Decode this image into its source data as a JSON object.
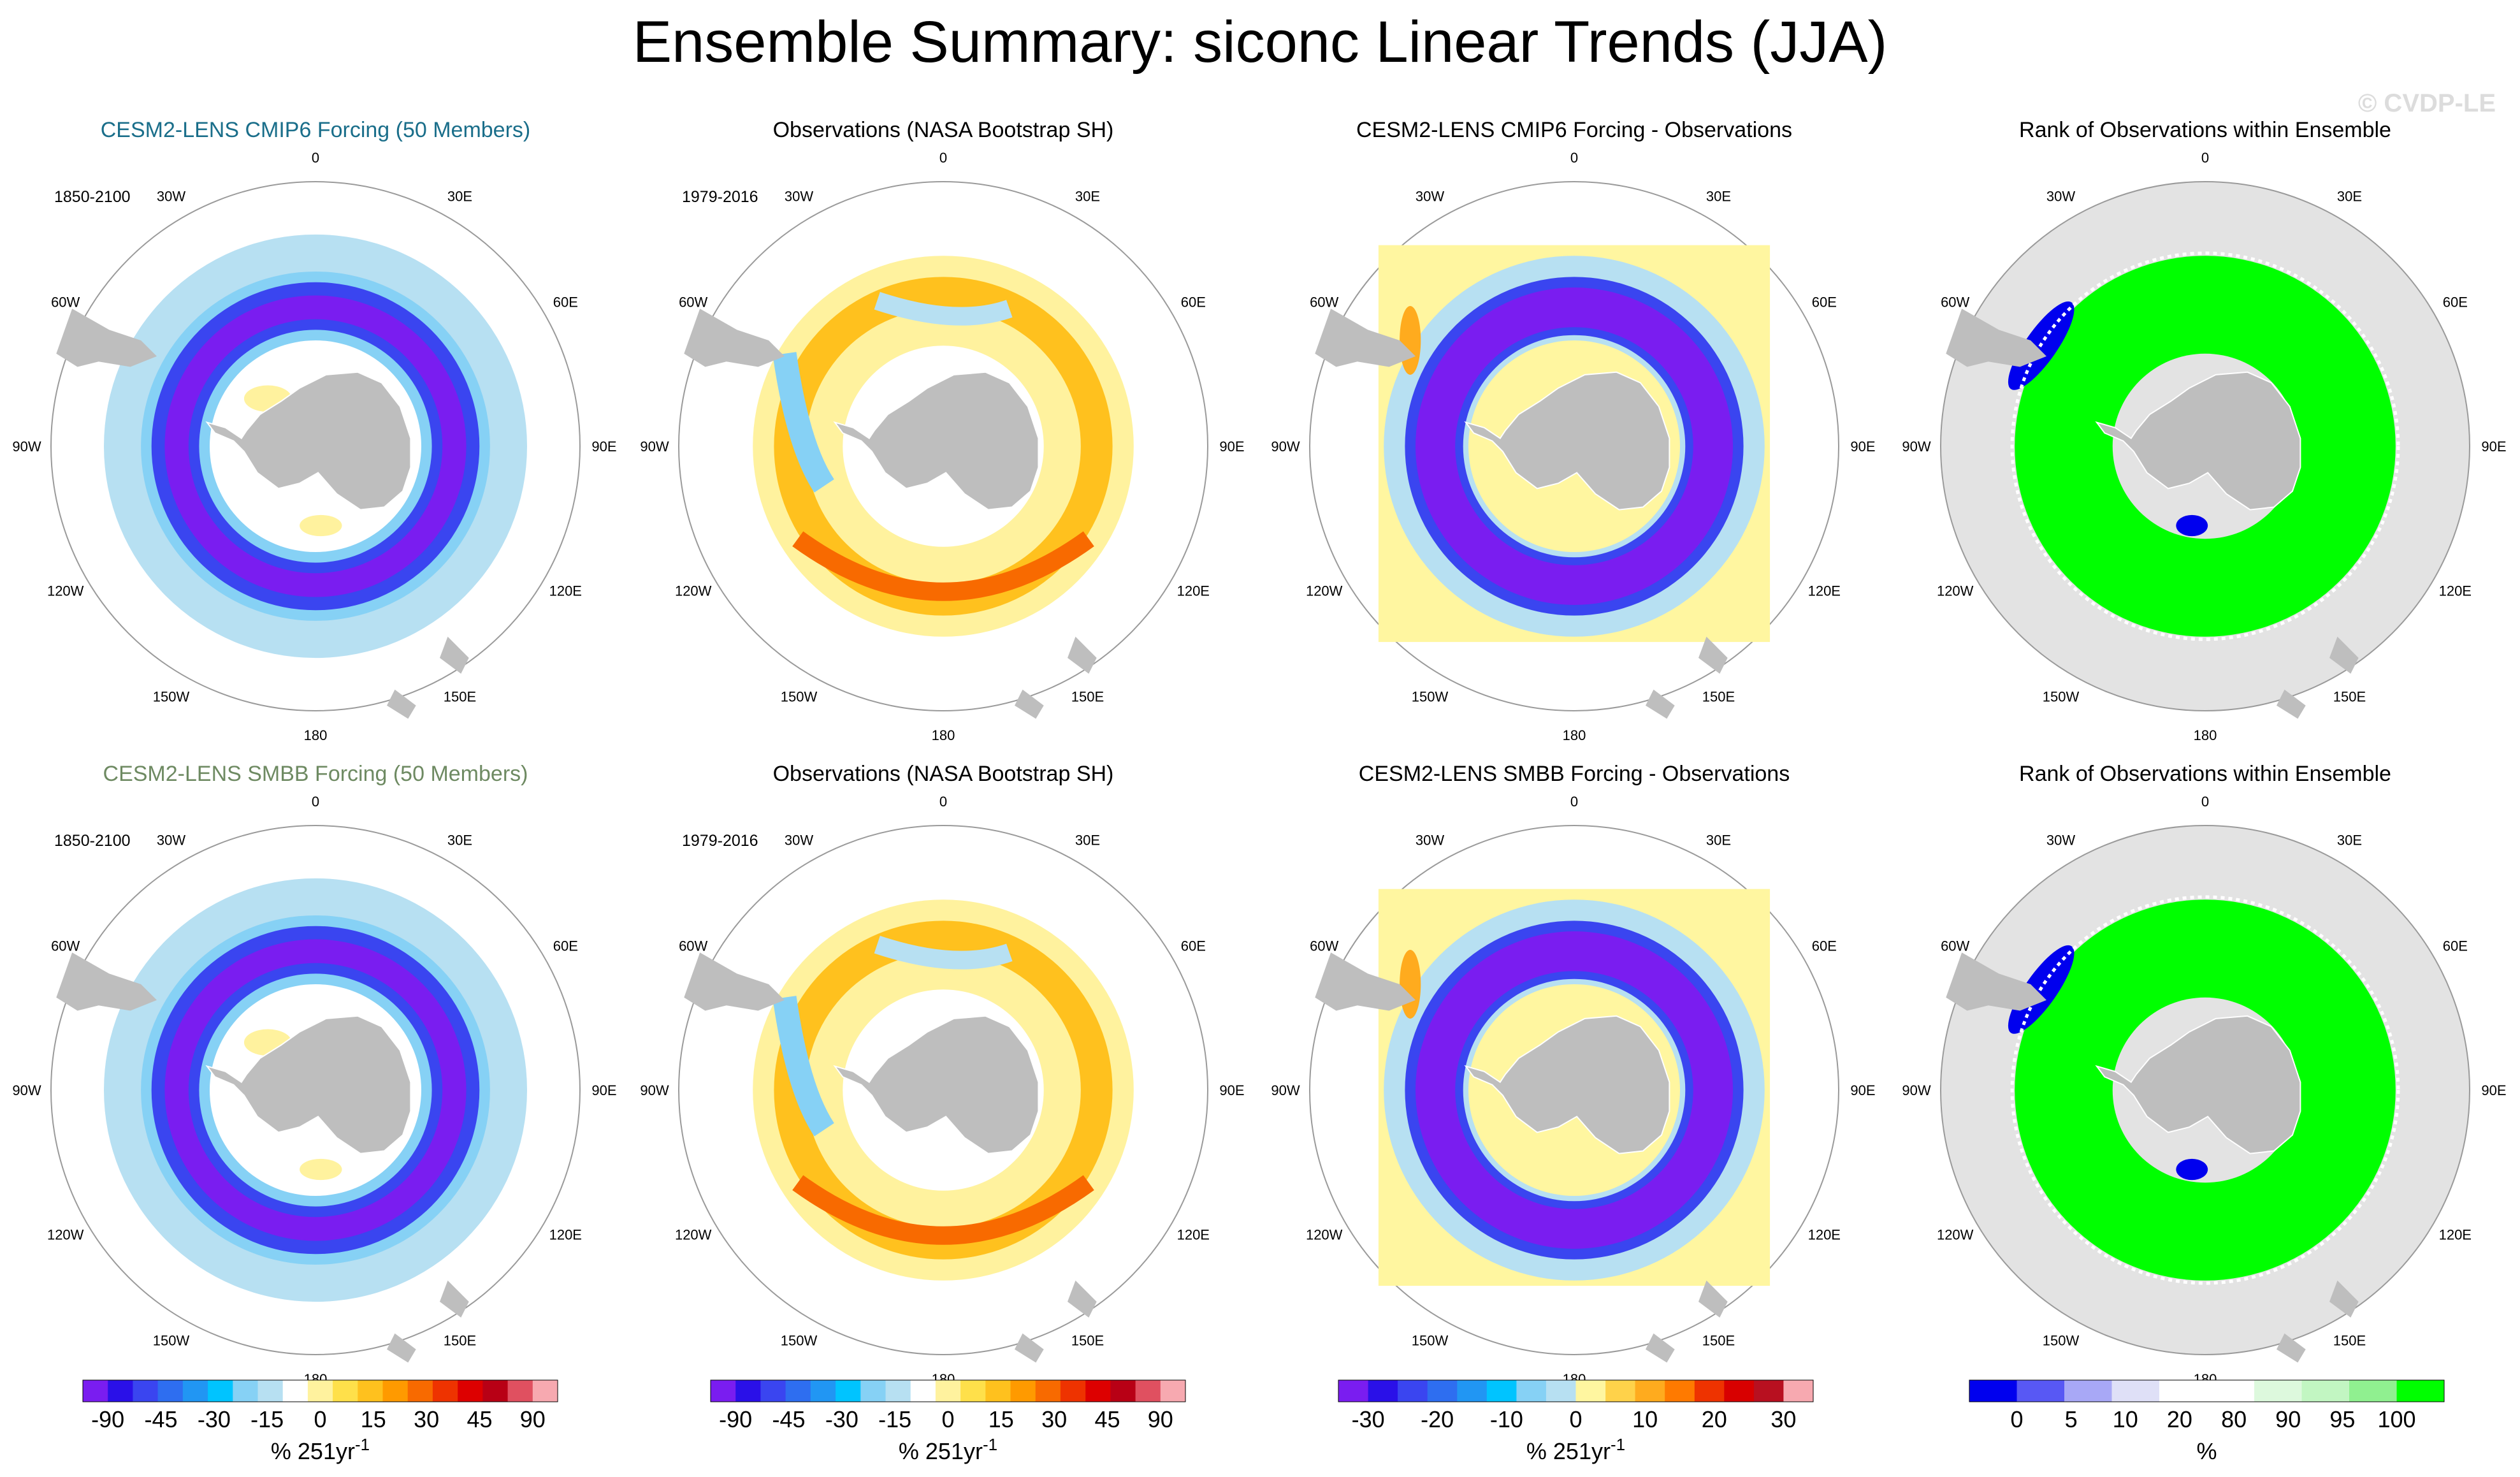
{
  "title": "Ensemble Summary: siconc Linear Trends (JJA)",
  "watermark": "© CVDP-LE",
  "colors": {
    "trend_palette": [
      "#7a1df0",
      "#2a10e8",
      "#3a45f0",
      "#2e6ef0",
      "#2196f3",
      "#00c4ff",
      "#86d1f5",
      "#b7e0f2",
      "#ffffff",
      "#fff29e",
      "#ffe04a",
      "#ffc11e",
      "#ff9a00",
      "#f86a00",
      "#ee3300",
      "#dd0000",
      "#b80015",
      "#e05060",
      "#f7a9b0"
    ],
    "diff_palette": [
      "#7a1df0",
      "#2a10e8",
      "#3a45f0",
      "#2e6ef0",
      "#2196f3",
      "#00c4ff",
      "#86d1f5",
      "#b7e0f2",
      "#fff6a0",
      "#ffd24a",
      "#ffab1e",
      "#ff7a00",
      "#ee3300",
      "#d80000",
      "#b81020",
      "#f7a9b0"
    ],
    "rank_palette": [
      "#0000ee",
      "#5858f4",
      "#a8a8f6",
      "#dfe0f7",
      "#ffffff",
      "#ffffff",
      "#ddf9dd",
      "#c2f6c2",
      "#90f090",
      "#00ff00"
    ],
    "land": "#bebebe",
    "rank_background": "#e3e3e3",
    "cmip6_title": "#1a6e8a",
    "smbb_title": "#6e8a62"
  },
  "longitude_labels": [
    "0",
    "30E",
    "60E",
    "90E",
    "120E",
    "150E",
    "180",
    "150W",
    "120W",
    "90W",
    "60W",
    "30W"
  ],
  "panels": [
    {
      "id": "cmip6-ens",
      "kind": "ensemble",
      "title": "CESM2-LENS CMIP6 Forcing (50 Members)",
      "title_color": "#1a6e8a",
      "period": "1850-2100"
    },
    {
      "id": "obs-1",
      "kind": "obs",
      "title": "Observations (NASA Bootstrap SH)",
      "title_color": "#000000",
      "period": "1979-2016"
    },
    {
      "id": "cmip6-diff",
      "kind": "diff",
      "title": "CESM2-LENS CMIP6 Forcing - Observations",
      "title_color": "#000000",
      "period": ""
    },
    {
      "id": "rank-1",
      "kind": "rank",
      "title": "Rank of Observations within Ensemble",
      "title_color": "#000000",
      "period": ""
    },
    {
      "id": "smbb-ens",
      "kind": "ensemble",
      "title": "CESM2-LENS SMBB Forcing (50 Members)",
      "title_color": "#6e8a62",
      "period": "1850-2100"
    },
    {
      "id": "obs-2",
      "kind": "obs",
      "title": "Observations (NASA Bootstrap SH)",
      "title_color": "#000000",
      "period": "1979-2016"
    },
    {
      "id": "smbb-diff",
      "kind": "diff",
      "title": "CESM2-LENS SMBB Forcing - Observations",
      "title_color": "#000000",
      "period": ""
    },
    {
      "id": "rank-2",
      "kind": "rank",
      "title": "Rank of Observations within Ensemble",
      "title_color": "#000000",
      "period": ""
    }
  ],
  "chart_data": [
    {
      "type": "heatmap",
      "projection": "south polar stereographic",
      "title": "CESM2-LENS CMIP6 Forcing (50 Members) / SMBB Forcing (50 Members), 1850-2100",
      "field": "siconc linear trend",
      "units": "% 251yr-1",
      "colorbar_ticks": [
        "-90",
        "-45",
        "-30",
        "-15",
        "0",
        "15",
        "30",
        "45",
        "90"
      ],
      "colorbar_levels": [
        -90,
        -75,
        -60,
        -45,
        -40,
        -35,
        -30,
        -25,
        -20,
        -15,
        -10,
        -5,
        0,
        5,
        10,
        15,
        20,
        25,
        30,
        35,
        40,
        45,
        60,
        75,
        90
      ],
      "description": "strong negative trends (-60 to -90) in a ring around the ice edge, weaker negative farther out"
    },
    {
      "type": "heatmap",
      "projection": "south polar stereographic",
      "title": "Observations (NASA Bootstrap SH), 1979-2016",
      "units": "% 251yr-1",
      "colorbar_ticks": [
        "-90",
        "-45",
        "-30",
        "-15",
        "0",
        "15",
        "30",
        "45",
        "90"
      ]
    },
    {
      "type": "heatmap",
      "projection": "south polar stereographic",
      "title": "CESM2-LENS CMIP6 / SMBB Forcing - Observations",
      "units": "% 251yr-1",
      "colorbar_ticks": [
        "-30",
        "-20",
        "-10",
        "0",
        "10",
        "20",
        "30"
      ]
    },
    {
      "type": "heatmap",
      "projection": "south polar stereographic",
      "title": "Rank of Observations within Ensemble",
      "units": "%",
      "colorbar_ticks": [
        "0",
        "5",
        "10",
        "20",
        "80",
        "90",
        "95",
        "100"
      ]
    }
  ],
  "colorbars": [
    {
      "id": "cb-trend-1",
      "palette": "trend_palette",
      "ticks": [
        "-90",
        "-45",
        "-30",
        "-15",
        "0",
        "15",
        "30",
        "45",
        "90"
      ],
      "label": "% 251yr",
      "exp": "-1"
    },
    {
      "id": "cb-trend-2",
      "palette": "trend_palette",
      "ticks": [
        "-90",
        "-45",
        "-30",
        "-15",
        "0",
        "15",
        "30",
        "45",
        "90"
      ],
      "label": "% 251yr",
      "exp": "-1"
    },
    {
      "id": "cb-diff",
      "palette": "diff_palette",
      "ticks": [
        "-30",
        "-20",
        "-10",
        "0",
        "10",
        "20",
        "30"
      ],
      "label": "% 251yr",
      "exp": "-1"
    },
    {
      "id": "cb-rank",
      "palette": "rank_palette",
      "ticks": [
        "0",
        "5",
        "10",
        "20",
        "80",
        "90",
        "95",
        "100"
      ],
      "label": "%",
      "exp": ""
    }
  ]
}
